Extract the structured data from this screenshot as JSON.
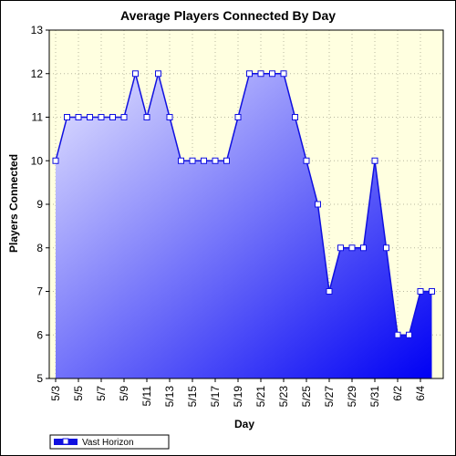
{
  "chart_data": {
    "type": "area",
    "title": "Average Players Connected By Day",
    "xlabel": "Day",
    "ylabel": "Players Connected",
    "ylim": [
      5,
      13
    ],
    "y_ticks": [
      5,
      6,
      7,
      8,
      9,
      10,
      11,
      12,
      13
    ],
    "x_tick_labels": [
      "5/3",
      "5/5",
      "5/7",
      "5/9",
      "5/11",
      "5/13",
      "5/15",
      "5/17",
      "5/19",
      "5/21",
      "5/23",
      "5/25",
      "5/27",
      "5/29",
      "5/31",
      "6/2",
      "6/4"
    ],
    "grid": true,
    "legend_position": "bottom-left",
    "categories": [
      "5/3",
      "5/4",
      "5/5",
      "5/6",
      "5/7",
      "5/8",
      "5/9",
      "5/10",
      "5/11",
      "5/12",
      "5/13",
      "5/14",
      "5/15",
      "5/16",
      "5/17",
      "5/18",
      "5/19",
      "5/20",
      "5/21",
      "5/22",
      "5/23",
      "5/24",
      "5/25",
      "5/26",
      "5/27",
      "5/28",
      "5/29",
      "5/30",
      "5/31",
      "6/1",
      "6/2",
      "6/3",
      "6/4",
      "6/5"
    ],
    "series": [
      {
        "name": "Vast Horizon",
        "values": [
          10,
          11,
          11,
          11,
          11,
          11,
          11,
          12,
          11,
          12,
          11,
          10,
          10,
          10,
          10,
          10,
          11,
          12,
          12,
          12,
          12,
          11,
          10,
          9,
          7,
          8,
          8,
          8,
          10,
          8,
          6,
          6,
          7,
          7
        ]
      }
    ],
    "colors": {
      "line": "#1010e0",
      "fill_light": "#e4e4ff",
      "fill_dark": "#0000f4",
      "plot_bg": "#ffffe0",
      "grid": "#b8b8a0"
    }
  }
}
